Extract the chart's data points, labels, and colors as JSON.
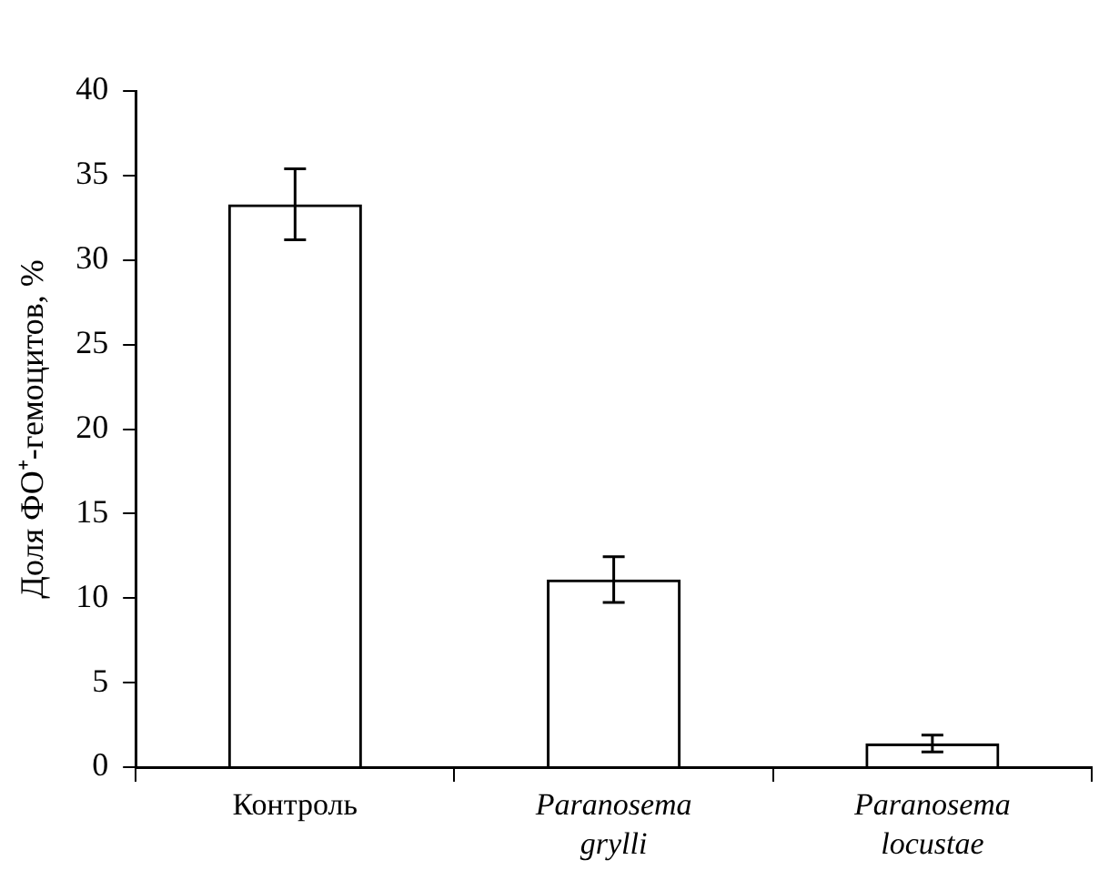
{
  "chart_data": {
    "type": "bar",
    "ylabel": "Доля ФО⁺-гемоцитов, %",
    "categories": [
      "Контроль",
      "Paranosema grylli",
      "Paranosema locustae"
    ],
    "values": [
      33.3,
      11.1,
      1.4
    ],
    "errors": [
      2.1,
      1.35,
      0.5
    ],
    "color": "#000000",
    "ylim": [
      0,
      40
    ],
    "yticks": [
      0,
      5,
      10,
      15,
      20,
      25,
      30,
      35,
      40
    ],
    "grid": false,
    "legend": false
  }
}
